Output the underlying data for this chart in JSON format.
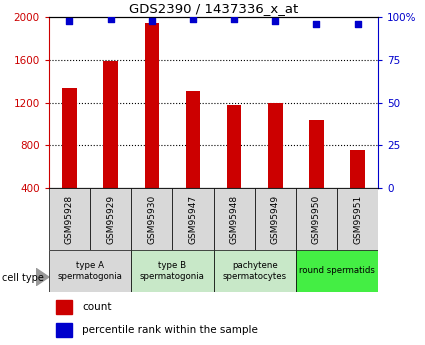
{
  "title": "GDS2390 / 1437336_x_at",
  "samples": [
    "GSM95928",
    "GSM95929",
    "GSM95930",
    "GSM95947",
    "GSM95948",
    "GSM95949",
    "GSM95950",
    "GSM95951"
  ],
  "counts": [
    1340,
    1590,
    1950,
    1310,
    1180,
    1200,
    1040,
    760
  ],
  "percentiles": [
    98,
    99,
    98,
    99,
    99,
    98,
    96,
    96
  ],
  "ylim_left": [
    400,
    2000
  ],
  "ylim_right": [
    0,
    100
  ],
  "yticks_left": [
    400,
    800,
    1200,
    1600,
    2000
  ],
  "yticks_right": [
    0,
    25,
    50,
    75,
    100
  ],
  "bar_color": "#cc0000",
  "dot_color": "#0000cc",
  "sample_box_color": "#d8d8d8",
  "grid_dotted_at": [
    800,
    1200,
    1600
  ],
  "bar_width": 0.35,
  "cell_groups": [
    {
      "label": "type A\nspermatogonia",
      "start": 0,
      "end": 1,
      "color": "#d8d8d8"
    },
    {
      "label": "type B\nspermatogonia",
      "start": 2,
      "end": 3,
      "color": "#c8e8c8"
    },
    {
      "label": "pachytene\nspermatocytes",
      "start": 4,
      "end": 5,
      "color": "#c8e8c8"
    },
    {
      "label": "round spermatids",
      "start": 6,
      "end": 7,
      "color": "#44ee44"
    }
  ],
  "legend_items": [
    {
      "color": "#cc0000",
      "label": "count"
    },
    {
      "color": "#0000cc",
      "label": "percentile rank within the sample"
    }
  ]
}
